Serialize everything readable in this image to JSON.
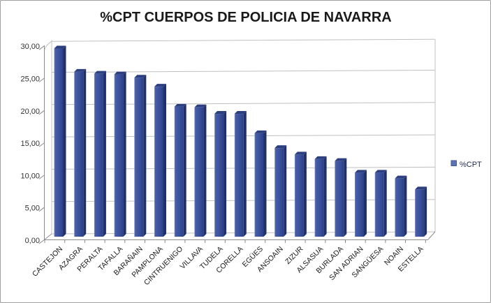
{
  "window": {
    "background": "#ffffff",
    "border_color": "#9f9f9f"
  },
  "chart_data": {
    "type": "bar",
    "style": "3d-column",
    "title": "%CPT CUERPOS DE POLICIA DE NAVARRA",
    "series_name": "%CPT",
    "categories": [
      "CASTEJON",
      "AZAGRA",
      "PERALTA",
      "TAFALLA",
      "BARAÑAIN",
      "PAMPLONA",
      "CINTRUENIGO",
      "VILLAVA",
      "TUDELA",
      "CORELLA",
      "EGÜES",
      "ANSOAIN",
      "ZIZUR",
      "ALSASUA",
      "BURLADA",
      "SAN ADRIAN",
      "SANGÜESA",
      "NOAIN",
      "ESTELLA"
    ],
    "values": [
      29.1,
      25.5,
      25.2,
      25.1,
      24.6,
      23.2,
      20.1,
      20.0,
      19.0,
      19.0,
      16.0,
      13.7,
      12.7,
      12.0,
      11.7,
      9.9,
      9.9,
      9.0,
      7.3
    ],
    "xlabel": "",
    "ylabel": "",
    "ylim": [
      0,
      30
    ],
    "ytick_values": [
      0,
      5,
      10,
      15,
      20,
      25,
      30
    ],
    "ytick_labels": [
      "0,00",
      "5,00",
      "10,00",
      "15,00",
      "20,00",
      "25,00",
      "30,00"
    ],
    "grid": true,
    "legend_position": "right",
    "colors": {
      "bar_face_light": "#8294c6",
      "bar_face": "#3a519c",
      "bar_face_dark": "#2b3f85",
      "bar_side": "#20306a",
      "bar_top": "#2c3f7e",
      "gridline": "#c0c0c0",
      "axis": "#8c8c8c",
      "title_text": "#1a1a1a",
      "tick_text": "#333333",
      "category_text": "#1a1a1a",
      "legend_text": "#1f2b4d",
      "legend_swatch": "#5b74ae",
      "legend_swatch_border": "#41599b"
    }
  }
}
